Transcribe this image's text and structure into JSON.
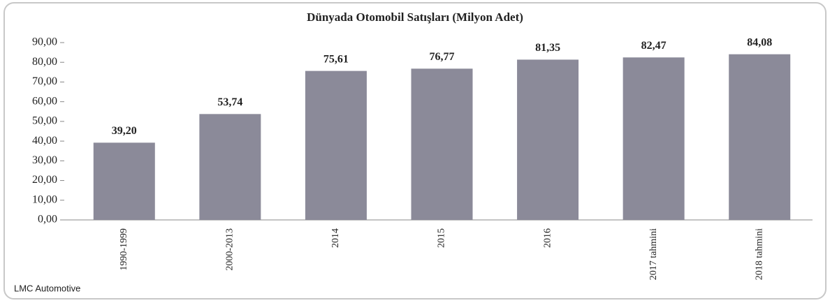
{
  "chart_data": {
    "type": "bar",
    "title": "Dünyada Otomobil Satışları (Milyon Adet)",
    "categories": [
      "1990-1999",
      "2000-2013",
      "2014",
      "2015",
      "2016",
      "2017 tahmini",
      "2018 tahmini"
    ],
    "values": [
      39.2,
      53.74,
      75.61,
      76.77,
      81.35,
      82.47,
      84.08
    ],
    "value_labels": [
      "39,20",
      "53,74",
      "75,61",
      "76,77",
      "81,35",
      "82,47",
      "84,08"
    ],
    "color": "#8b8a99",
    "ylim": [
      0,
      90
    ],
    "yticks": [
      {
        "value": 0,
        "label": "0,00"
      },
      {
        "value": 10,
        "label": "10,00"
      },
      {
        "value": 20,
        "label": "20,00"
      },
      {
        "value": 30,
        "label": "30,00"
      },
      {
        "value": 40,
        "label": "40,00"
      },
      {
        "value": 50,
        "label": "50,00"
      },
      {
        "value": 60,
        "label": "60,00"
      },
      {
        "value": 70,
        "label": "70,00"
      },
      {
        "value": 80,
        "label": "80,00"
      },
      {
        "value": 90,
        "label": "90,00"
      }
    ],
    "grid": false,
    "source": "LMC Automotive"
  }
}
